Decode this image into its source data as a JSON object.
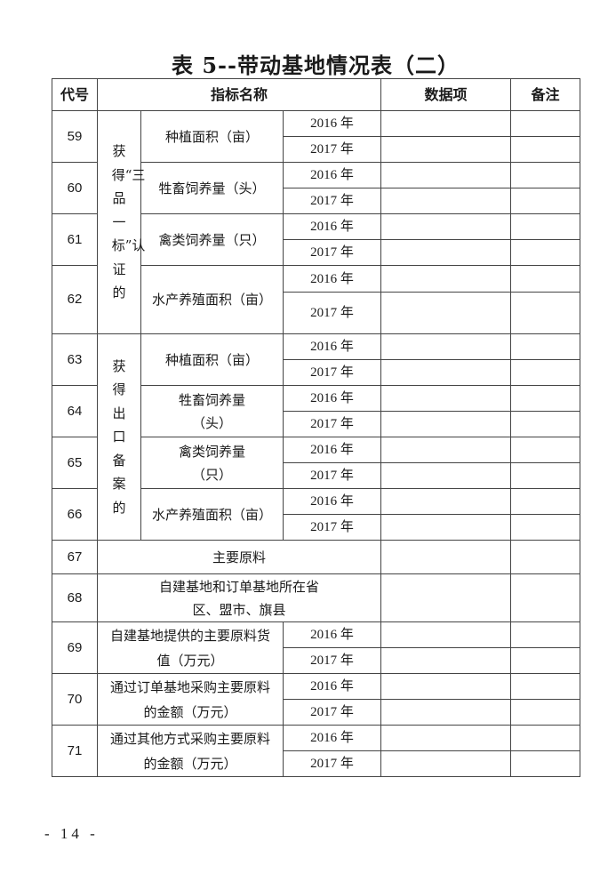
{
  "title": "表 5--带动基地情况表（二）",
  "headers": {
    "code": "代号",
    "indicator": "指标名称",
    "data": "数据项",
    "remark": "备注"
  },
  "groups": {
    "g1": "获得“三品一标”认证的",
    "g2": "获得出口备案的"
  },
  "years": [
    "2016 年",
    "2017 年"
  ],
  "rows": [
    {
      "code": "59",
      "name": "种植面积（亩）"
    },
    {
      "code": "60",
      "name": "牲畜饲养量（头）"
    },
    {
      "code": "61",
      "name": "禽类饲养量（只）"
    },
    {
      "code": "62",
      "name": "水产养殖面积（亩）"
    },
    {
      "code": "63",
      "name": "种植面积（亩）"
    },
    {
      "code": "64",
      "name": "牲畜饲养量（头）"
    },
    {
      "code": "65",
      "name": "禽类饲养量（只）"
    },
    {
      "code": "66",
      "name": "水产养殖面积（亩）"
    },
    {
      "code": "67",
      "name": "主要原料"
    },
    {
      "code": "68",
      "name": "自建基地和订单基地所在省区、盟市、旗县"
    },
    {
      "code": "69",
      "name": "自建基地提供的主要原料货值（万元）"
    },
    {
      "code": "70",
      "name": "通过订单基地采购主要原料的金额（万元）"
    },
    {
      "code": "71",
      "name": "通过其他方式采购主要原料的金额（万元）"
    }
  ],
  "footer": "- 14 -"
}
